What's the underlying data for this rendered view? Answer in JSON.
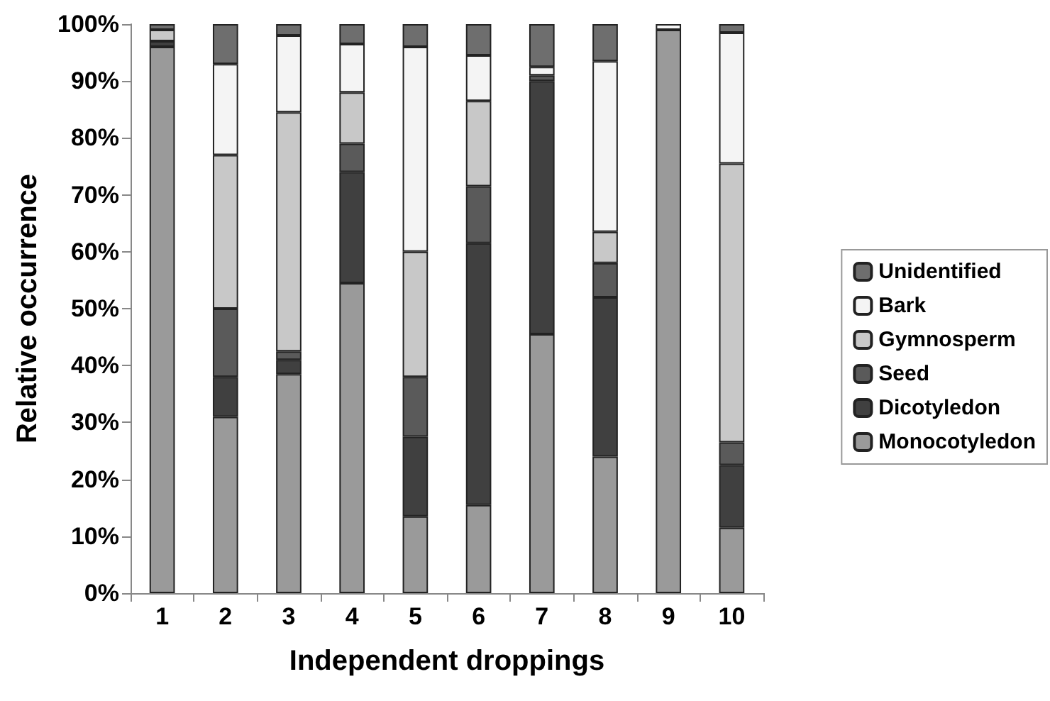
{
  "chart_data": {
    "type": "bar",
    "stacked": true,
    "xlabel": "Independent droppings",
    "ylabel": "Relative occurrence",
    "categories": [
      "1",
      "2",
      "3",
      "4",
      "5",
      "6",
      "7",
      "8",
      "9",
      "10"
    ],
    "series": [
      {
        "name": "Monocotyledon",
        "color": "#9a9a9a",
        "values": [
          96,
          31,
          38.5,
          54.5,
          13.5,
          15.5,
          45.5,
          24,
          99,
          11.5
        ]
      },
      {
        "name": "Dicotyledon",
        "color": "#404040",
        "values": [
          1,
          7,
          2.5,
          19.5,
          14,
          46,
          44.5,
          28,
          0,
          11
        ]
      },
      {
        "name": "Seed",
        "color": "#5a5a5a",
        "values": [
          0,
          12,
          1.5,
          5,
          10.5,
          10,
          1,
          6,
          0,
          4
        ]
      },
      {
        "name": "Gymnosperm",
        "color": "#c8c8c8",
        "values": [
          2,
          27,
          42,
          9,
          22,
          15,
          0,
          5.5,
          0,
          49
        ]
      },
      {
        "name": "Bark",
        "color": "#f4f4f4",
        "values": [
          0,
          16,
          13.5,
          8.5,
          36,
          8,
          1.5,
          30,
          1,
          23
        ]
      },
      {
        "name": "Unidentified",
        "color": "#6e6e6e",
        "values": [
          1,
          7,
          2,
          3.5,
          4,
          5.5,
          7.5,
          6.5,
          0,
          1.5
        ]
      }
    ],
    "ylim": [
      0,
      100
    ],
    "yticks": [
      {
        "value": 0,
        "label": "0%"
      },
      {
        "value": 10,
        "label": "10%"
      },
      {
        "value": 20,
        "label": "20%"
      },
      {
        "value": 30,
        "label": "30%"
      },
      {
        "value": 40,
        "label": "40%"
      },
      {
        "value": 50,
        "label": "50%"
      },
      {
        "value": 60,
        "label": "60%"
      },
      {
        "value": 70,
        "label": "70%"
      },
      {
        "value": 80,
        "label": "80%"
      },
      {
        "value": 90,
        "label": "90%"
      },
      {
        "value": 100,
        "label": "100%"
      }
    ],
    "grid": false,
    "legend": "right"
  }
}
